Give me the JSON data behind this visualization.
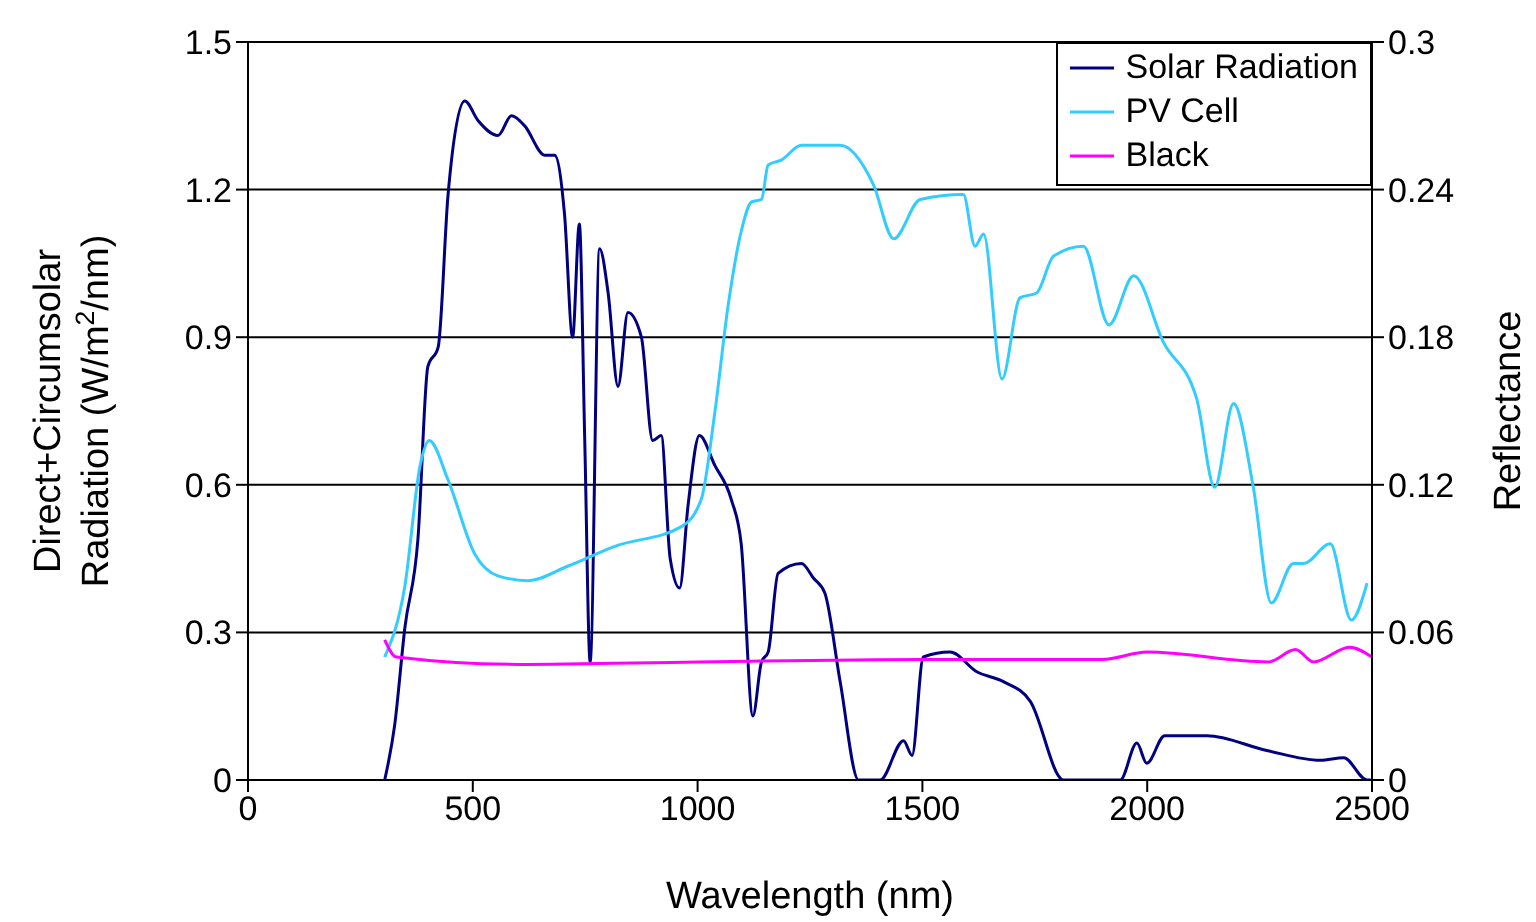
{
  "chart_data": {
    "type": "line",
    "xlabel": "Wavelength (nm)",
    "ylabel": "Direct+Circumsolar Radiation (W/m$^{2}$/nm)",
    "y2label": "Reflectance",
    "xlim": [
      0,
      2500
    ],
    "xticks": [
      0,
      500,
      1000,
      1500,
      2000,
      2500
    ],
    "ylim": [
      0,
      1.5
    ],
    "yticks": [
      0,
      0.3,
      0.6,
      0.9,
      1.2,
      1.5
    ],
    "y2lim": [
      0,
      0.3
    ],
    "y2ticks": [
      0,
      0.06,
      0.12,
      0.18,
      0.24,
      0.3
    ],
    "grid": "y",
    "legend": "top right",
    "marker": "none",
    "line_style": "solid",
    "series": [
      {
        "name": "Solar Radiation",
        "color": "#000080",
        "x": [
          304,
          326,
          349,
          378,
          400,
          423,
          445,
          482,
          512,
          556,
          586,
          615,
          660,
          682,
          704,
          722,
          737,
          749,
          761,
          782,
          801,
          823,
          845,
          875,
          900,
          919,
          939,
          960,
          979,
          1004,
          1038,
          1075,
          1097,
          1123,
          1142,
          1157,
          1179,
          1231,
          1258,
          1283,
          1317,
          1358,
          1406,
          1458,
          1477,
          1502,
          1562,
          1621,
          1680,
          1740,
          1814,
          1940,
          1977,
          1999,
          2039,
          2133,
          2266,
          2385,
          2437,
          2489,
          2500
        ],
        "values": [
          0,
          0.11,
          0.31,
          0.49,
          0.84,
          0.88,
          1.19,
          1.38,
          1.34,
          1.31,
          1.35,
          1.33,
          1.27,
          1.27,
          1.15,
          0.9,
          1.13,
          0.69,
          0.24,
          1.08,
          0.99,
          0.8,
          0.95,
          0.9,
          0.69,
          0.7,
          0.45,
          0.39,
          0.56,
          0.7,
          0.64,
          0.57,
          0.48,
          0.13,
          0.24,
          0.26,
          0.42,
          0.44,
          0.41,
          0.38,
          0.2,
          0,
          0,
          0.08,
          0.05,
          0.25,
          0.26,
          0.22,
          0.2,
          0.16,
          0,
          0,
          0.075,
          0.034,
          0.09,
          0.09,
          0.06,
          0.04,
          0.045,
          0,
          0
        ]
      },
      {
        "name": "PV Cell",
        "color": "#33ccff",
        "axis": "y2",
        "x": [
          304,
          349,
          383,
          403,
          445,
          504,
          556,
          623,
          712,
          816,
          964,
          1008,
          1038,
          1068,
          1097,
          1120,
          1142,
          1157,
          1186,
          1231,
          1290,
          1317,
          1391,
          1436,
          1495,
          1591,
          1617,
          1636,
          1677,
          1717,
          1754,
          1792,
          1858,
          1915,
          1970,
          2036,
          2110,
          2150,
          2192,
          2236,
          2276,
          2325,
          2348,
          2407,
          2454,
          2489
        ],
        "values": [
          0.05,
          0.079,
          0.128,
          0.138,
          0.122,
          0.092,
          0.083,
          0.081,
          0.087,
          0.095,
          0.103,
          0.114,
          0.149,
          0.193,
          0.223,
          0.235,
          0.236,
          0.25,
          0.252,
          0.258,
          0.258,
          0.258,
          0.242,
          0.22,
          0.236,
          0.238,
          0.217,
          0.222,
          0.163,
          0.196,
          0.198,
          0.213,
          0.217,
          0.185,
          0.205,
          0.178,
          0.155,
          0.119,
          0.153,
          0.119,
          0.072,
          0.088,
          0.088,
          0.096,
          0.065,
          0.08
        ]
      },
      {
        "name": "Black",
        "color": "#ff00ff",
        "axis": "y2",
        "x": [
          304,
          330,
          600,
          1000,
          1500,
          1900,
          2000,
          2270,
          2330,
          2370,
          2450,
          2500
        ],
        "values": [
          0.057,
          0.05,
          0.047,
          0.048,
          0.049,
          0.049,
          0.052,
          0.048,
          0.053,
          0.048,
          0.054,
          0.05
        ]
      }
    ]
  }
}
